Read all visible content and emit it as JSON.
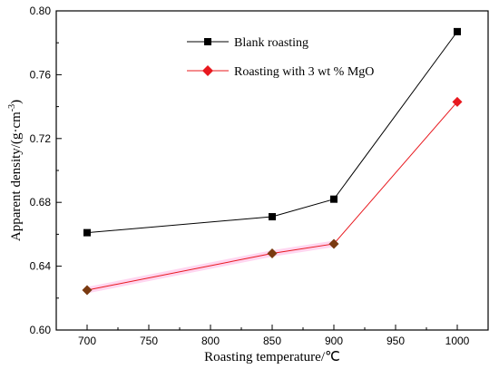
{
  "chart_data": {
    "type": "line",
    "xlabel": "Roasting temperature/℃",
    "ylabel": "Apparent density/(g·cm",
    "ylabel_sup": "-3",
    "ylabel_close": ")",
    "xlim": [
      675,
      1025
    ],
    "ylim": [
      0.6,
      0.8
    ],
    "xticks": [
      700,
      750,
      800,
      850,
      900,
      950,
      1000
    ],
    "yticks": [
      0.6,
      0.64,
      0.68,
      0.72,
      0.76,
      0.8
    ],
    "ytick_labels": [
      "0.60",
      "0.64",
      "0.68",
      "0.72",
      "0.76",
      "0.80"
    ],
    "x": [
      700,
      850,
      900,
      1000
    ],
    "series": [
      {
        "name": "Blank roasting",
        "values": [
          0.661,
          0.671,
          0.682,
          0.787
        ],
        "color": "#000000",
        "marker": "square"
      },
      {
        "name": "Roasting with 3 wt % MgO",
        "values": [
          0.625,
          0.648,
          0.654,
          0.743
        ],
        "color": "#e8181e",
        "marker_color": "#7a3a10",
        "marker_color_last": "#e8181e",
        "marker": "diamond"
      }
    ],
    "grid": false,
    "legend_position": "top-center"
  }
}
